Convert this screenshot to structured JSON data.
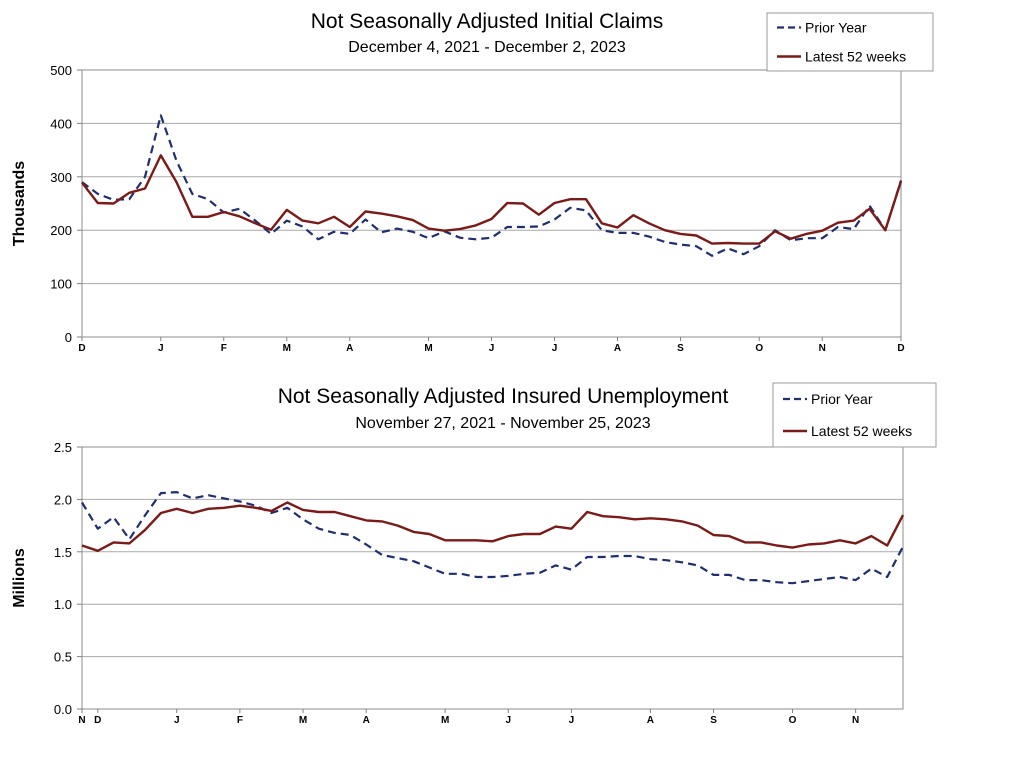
{
  "chart_data": [
    {
      "type": "line",
      "title": "Not Seasonally Adjusted Initial Claims",
      "subtitle": "December 4, 2021  - December 2, 2023",
      "ylabel": "Thousands",
      "ylim": [
        0,
        500
      ],
      "yticks": [
        "0",
        "100",
        "200",
        "300",
        "400",
        "500"
      ],
      "month_labels": [
        "D",
        "J",
        "F",
        "M",
        "A",
        "M",
        "J",
        "J",
        "A",
        "S",
        "O",
        "N",
        "D"
      ],
      "month_positions": [
        0,
        5,
        9,
        13,
        17,
        22,
        26,
        30,
        34,
        38,
        43,
        47,
        52
      ],
      "grid": true,
      "legend": "top-right",
      "legend_colors": {
        "prior": "#1f2f6e",
        "latest": "#7b1a16"
      },
      "series": [
        {
          "name": "Prior Year",
          "values": [
            290,
            268,
            257,
            258,
            300,
            415,
            330,
            268,
            258,
            233,
            240,
            218,
            193,
            218,
            207,
            183,
            197,
            193,
            220,
            196,
            203,
            197,
            185,
            198,
            186,
            183,
            186,
            206,
            206,
            207,
            220,
            242,
            237,
            200,
            195,
            195,
            188,
            178,
            173,
            170,
            152,
            166,
            155,
            170,
            200,
            181,
            185,
            185,
            206,
            202,
            246,
            200,
            293
          ]
        },
        {
          "name": "Latest 52 weeks",
          "values": [
            289,
            251,
            250,
            270,
            278,
            340,
            290,
            225,
            225,
            234,
            226,
            213,
            201,
            238,
            218,
            213,
            225,
            206,
            235,
            231,
            226,
            219,
            203,
            199,
            202,
            209,
            221,
            251,
            250,
            229,
            251,
            258,
            258,
            213,
            205,
            228,
            213,
            200,
            193,
            190,
            175,
            176,
            175,
            175,
            198,
            184,
            193,
            199,
            214,
            218,
            240,
            200,
            292
          ]
        }
      ]
    },
    {
      "type": "line",
      "title": "Not Seasonally Adjusted Insured Unemployment",
      "subtitle": "November 27, 2021  - November 25, 2023",
      "ylabel": "Millions",
      "ylim": [
        0,
        2.5
      ],
      "yticks": [
        "0.0",
        "0.5",
        "1.0",
        "1.5",
        "2.0",
        "2.5"
      ],
      "month_labels": [
        "N",
        "D",
        "J",
        "F",
        "M",
        "A",
        "M",
        "J",
        "J",
        "A",
        "S",
        "O",
        "N"
      ],
      "month_positions": [
        0,
        1,
        6,
        10,
        14,
        18,
        23,
        27,
        31,
        36,
        40,
        45,
        49
      ],
      "grid": true,
      "legend": "top-right",
      "legend_colors": {
        "prior": "#1f2f6e",
        "latest": "#7b1a16"
      },
      "series": [
        {
          "name": "Prior Year",
          "values": [
            1.97,
            1.72,
            1.83,
            1.62,
            1.85,
            2.06,
            2.07,
            2.01,
            2.04,
            2.01,
            1.98,
            1.94,
            1.87,
            1.92,
            1.81,
            1.72,
            1.68,
            1.66,
            1.57,
            1.47,
            1.44,
            1.41,
            1.35,
            1.29,
            1.29,
            1.26,
            1.26,
            1.27,
            1.29,
            1.3,
            1.37,
            1.33,
            1.45,
            1.45,
            1.46,
            1.46,
            1.43,
            1.42,
            1.4,
            1.37,
            1.28,
            1.28,
            1.23,
            1.23,
            1.21,
            1.2,
            1.22,
            1.24,
            1.26,
            1.23,
            1.34,
            1.26,
            1.55
          ]
        },
        {
          "name": "Latest 52 weeks",
          "values": [
            1.56,
            1.51,
            1.59,
            1.58,
            1.71,
            1.87,
            1.91,
            1.87,
            1.91,
            1.92,
            1.94,
            1.92,
            1.89,
            1.97,
            1.9,
            1.88,
            1.88,
            1.84,
            1.8,
            1.79,
            1.75,
            1.69,
            1.67,
            1.61,
            1.61,
            1.61,
            1.6,
            1.65,
            1.67,
            1.67,
            1.74,
            1.72,
            1.88,
            1.84,
            1.83,
            1.81,
            1.82,
            1.81,
            1.79,
            1.75,
            1.66,
            1.65,
            1.59,
            1.59,
            1.56,
            1.54,
            1.57,
            1.58,
            1.61,
            1.58,
            1.65,
            1.56,
            1.85
          ]
        }
      ]
    }
  ]
}
